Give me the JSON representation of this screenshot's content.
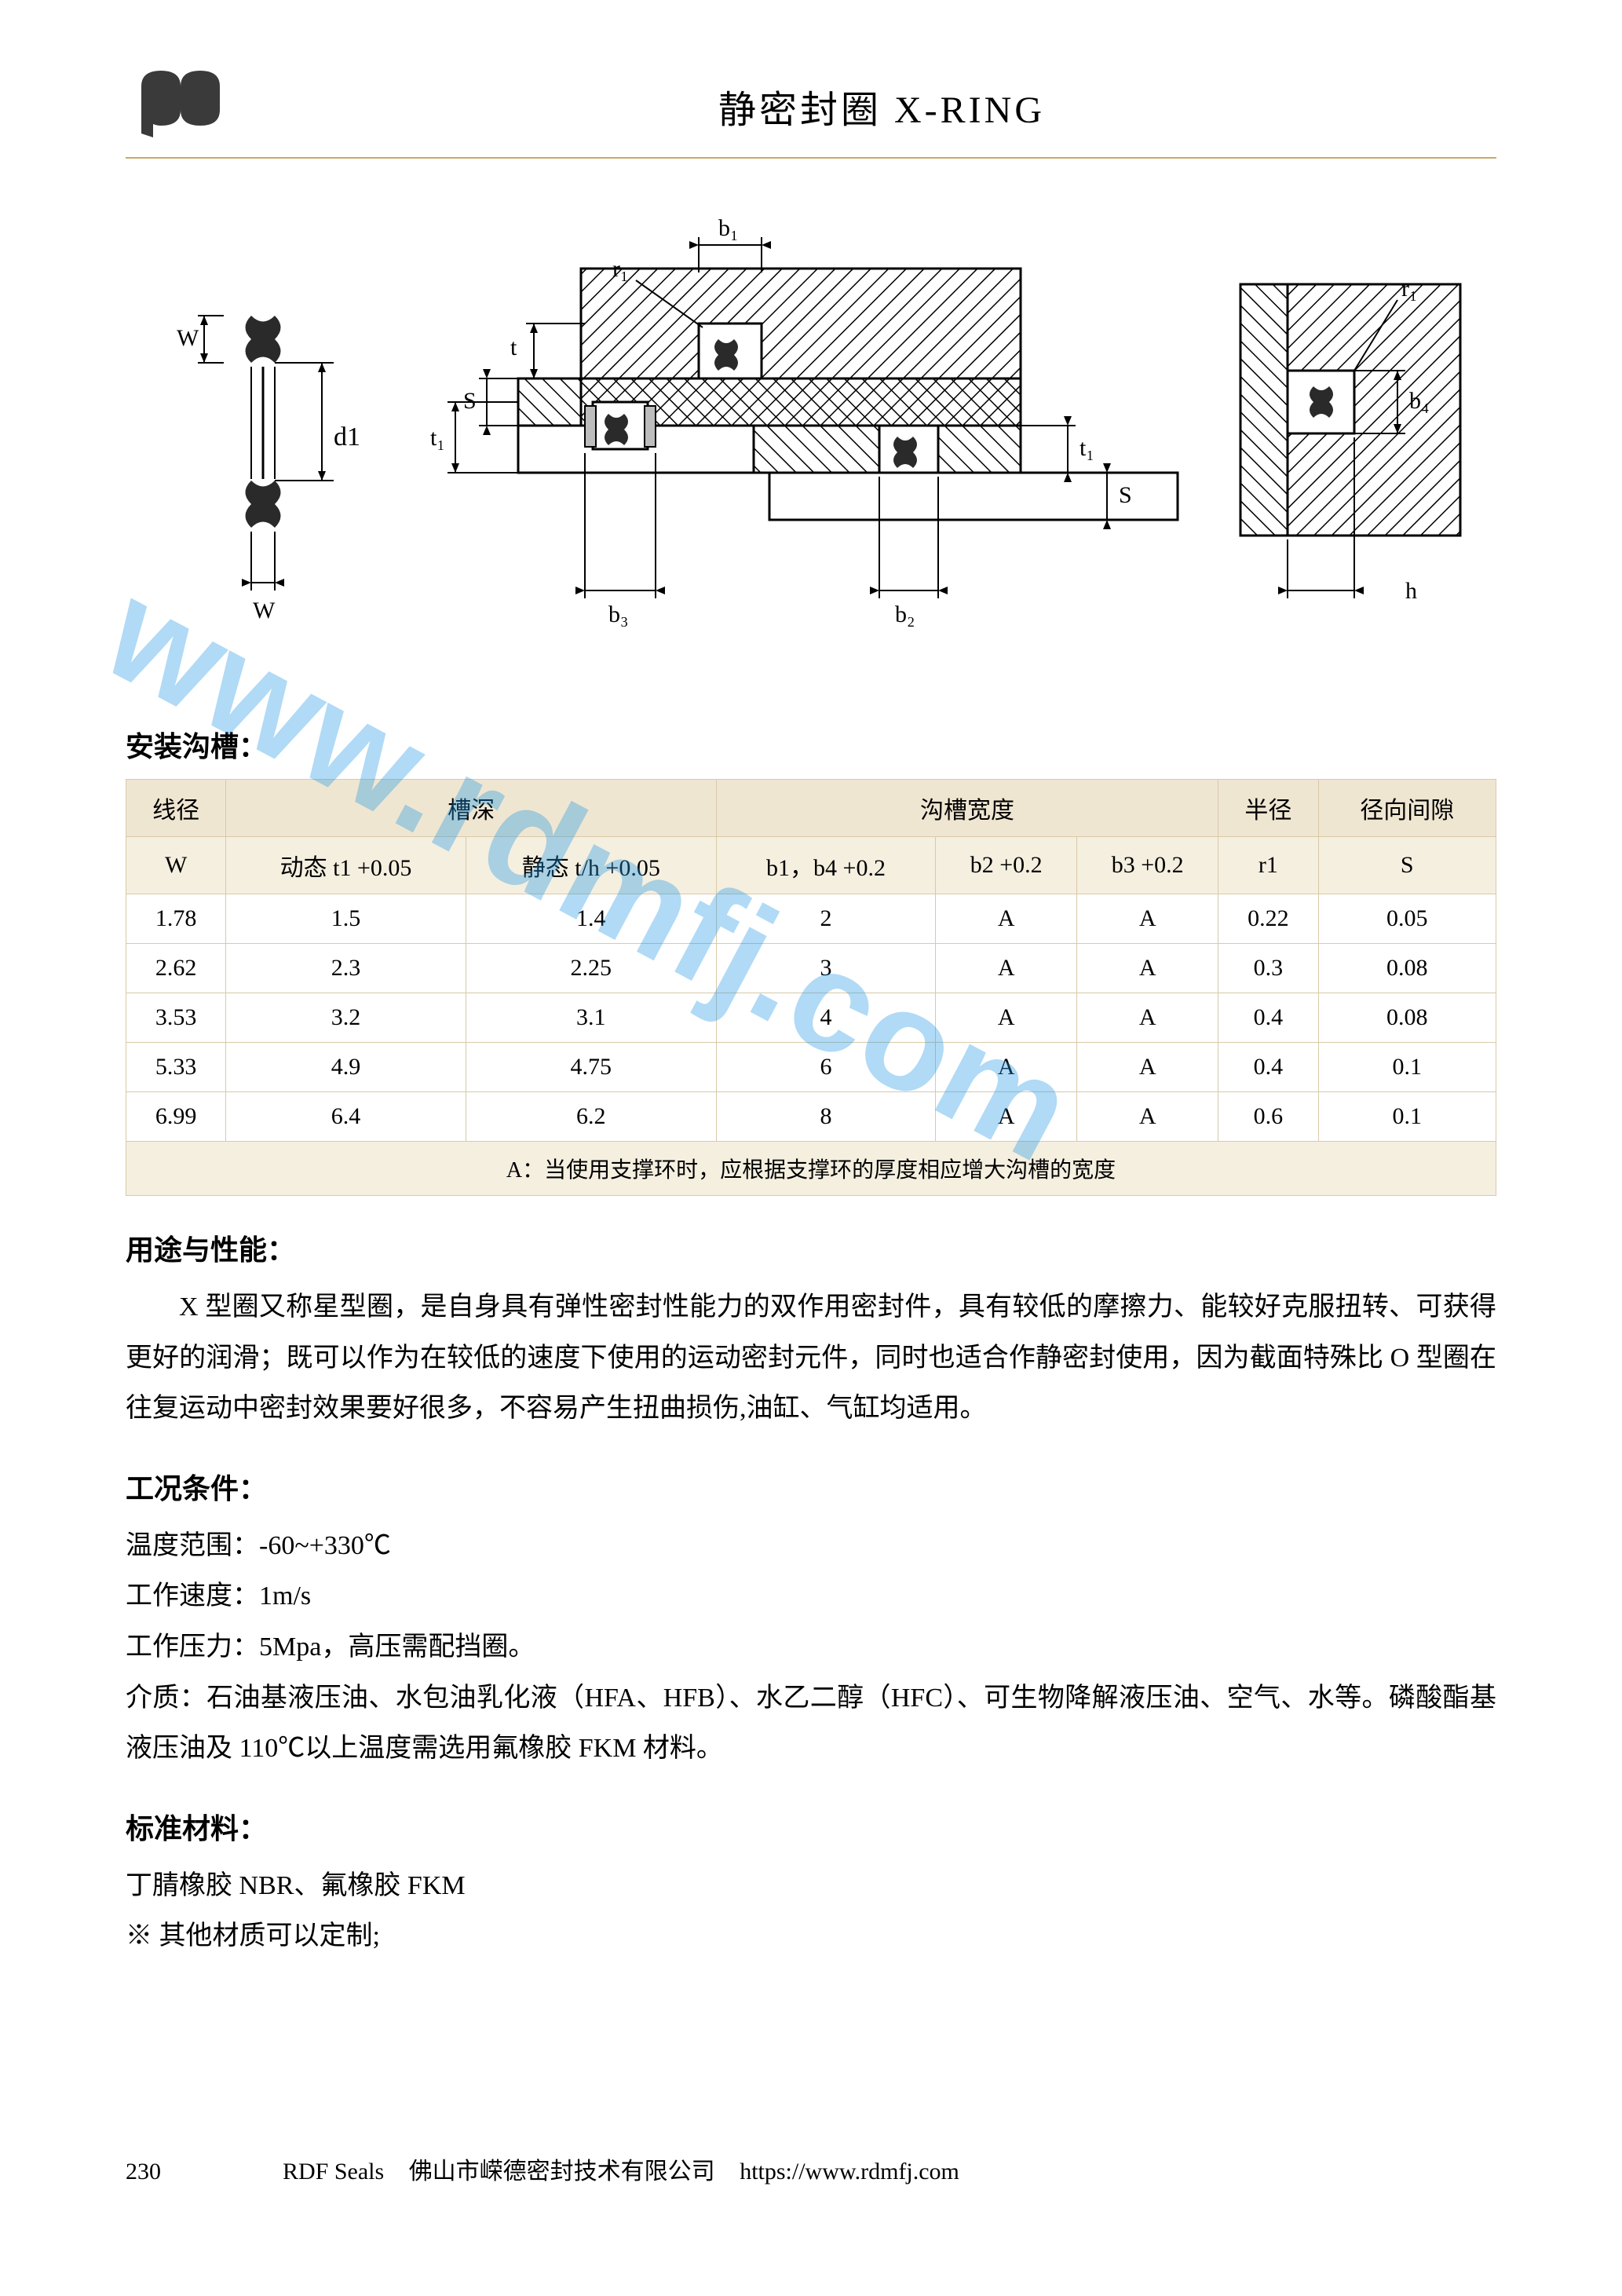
{
  "header": {
    "title": "静密封圈 X-RING"
  },
  "diagram": {
    "labels": {
      "W_left_vert": "W",
      "W_left_horiz": "W",
      "d1": "d1",
      "t1": "t₁",
      "S_left": "S",
      "t_top": "t",
      "r1_left": "r₁",
      "b1": "b₁",
      "b3": "b₃",
      "b2": "b₂",
      "S_right": "S",
      "t1_right": "t₁",
      "r1_right": "r₁",
      "b4": "b₄",
      "h": "h"
    },
    "hatch_color": "#000000",
    "fill_color": "#ffffff",
    "stroke_width": 3
  },
  "groove_section": {
    "heading": "安装沟槽：",
    "table": {
      "header_row1": [
        "线径",
        "槽深",
        "沟槽宽度",
        "半径",
        "径向间隙"
      ],
      "header_row1_spans": [
        1,
        2,
        3,
        1,
        1
      ],
      "header_row2": [
        "W",
        "动态 t1 +0.05",
        "静态 t/h +0.05",
        "b1，b4 +0.2",
        "b2 +0.2",
        "b3 +0.2",
        "r1",
        "S"
      ],
      "rows": [
        [
          "1.78",
          "1.5",
          "1.4",
          "2",
          "A",
          "A",
          "0.22",
          "0.05"
        ],
        [
          "2.62",
          "2.3",
          "2.25",
          "3",
          "A",
          "A",
          "0.3",
          "0.08"
        ],
        [
          "3.53",
          "3.2",
          "3.1",
          "4",
          "A",
          "A",
          "0.4",
          "0.08"
        ],
        [
          "5.33",
          "4.9",
          "4.75",
          "6",
          "A",
          "A",
          "0.4",
          "0.1"
        ],
        [
          "6.99",
          "6.4",
          "6.2",
          "8",
          "A",
          "A",
          "0.6",
          "0.1"
        ]
      ],
      "footnote": "A：当使用支撑环时，应根据支撑环的厚度相应增大沟槽的宽度",
      "header_bg": "#efe6d2",
      "subhead_bg": "#f5efe0",
      "border_color": "#d9c9a8"
    }
  },
  "usage_section": {
    "heading": "用途与性能：",
    "text": "X 型圈又称星型圈，是自身具有弹性密封性能力的双作用密封件，具有较低的摩擦力、能较好克服扭转、可获得更好的润滑；既可以作为在较低的速度下使用的运动密封元件，同时也适合作静密封使用，因为截面特殊比 O 型圈在往复运动中密封效果要好很多，不容易产生扭曲损伤,油缸、气缸均适用。"
  },
  "conditions_section": {
    "heading": "工况条件：",
    "lines": [
      "温度范围：-60~+330℃",
      "工作速度：1m/s",
      "工作压力：5Mpa，高压需配挡圈。",
      "介质：石油基液压油、水包油乳化液（HFA、HFB）、水乙二醇（HFC）、可生物降解液压油、空气、水等。磷酸酯基液压油及 110℃以上温度需选用氟橡胶 FKM 材料。"
    ]
  },
  "materials_section": {
    "heading": "标准材料：",
    "lines": [
      "丁腈橡胶 NBR、氟橡胶 FKM",
      "※ 其他材质可以定制;"
    ]
  },
  "footer": {
    "page_number": "230",
    "brand": "RDF Seals",
    "company": "佛山市嵘德密封技术有限公司",
    "url": "https://www.rdmfj.com"
  },
  "watermark": {
    "text": "www.rdmfj.com",
    "color": "rgba(30,150,230,0.35)"
  }
}
